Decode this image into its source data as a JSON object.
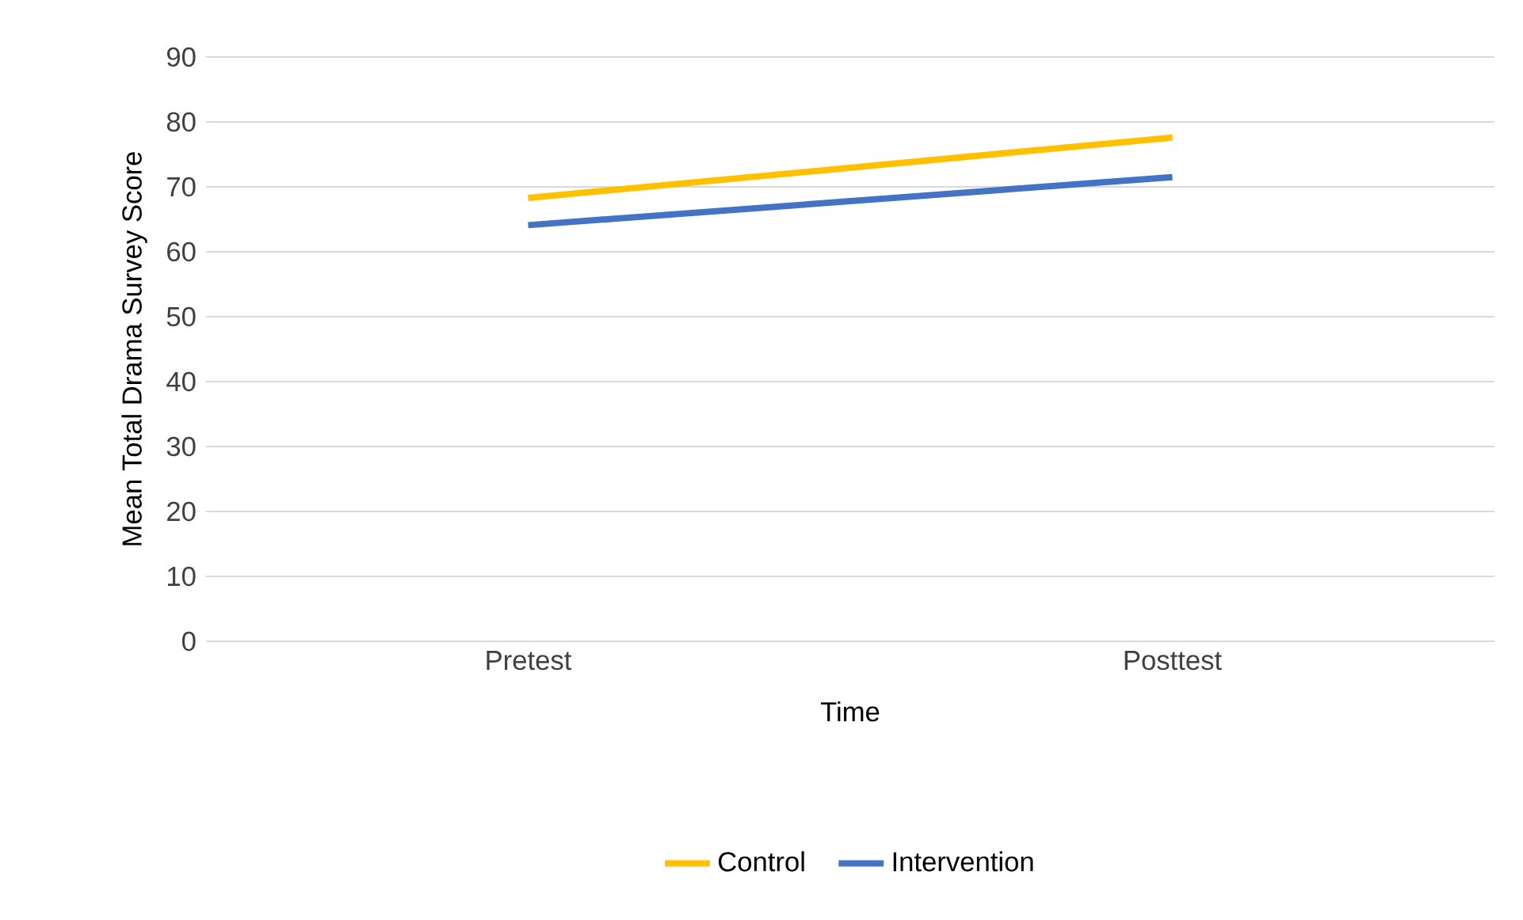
{
  "chart_data": {
    "type": "line",
    "xlabel": "Time",
    "ylabel": "Mean Total Drama Survey Score",
    "categories": [
      "Pretest",
      "Posttest"
    ],
    "series": [
      {
        "name": "Control",
        "color": "#ffc000",
        "values": [
          68.3,
          77.6
        ]
      },
      {
        "name": "Intervention",
        "color": "#4472c4",
        "values": [
          64.1,
          71.5
        ]
      }
    ],
    "ylim": [
      0,
      90
    ],
    "yticks": [
      0,
      10,
      20,
      30,
      40,
      50,
      60,
      70,
      80,
      90
    ],
    "grid": "y",
    "legend": "bottom",
    "marker": "none",
    "line_style": "solid"
  }
}
